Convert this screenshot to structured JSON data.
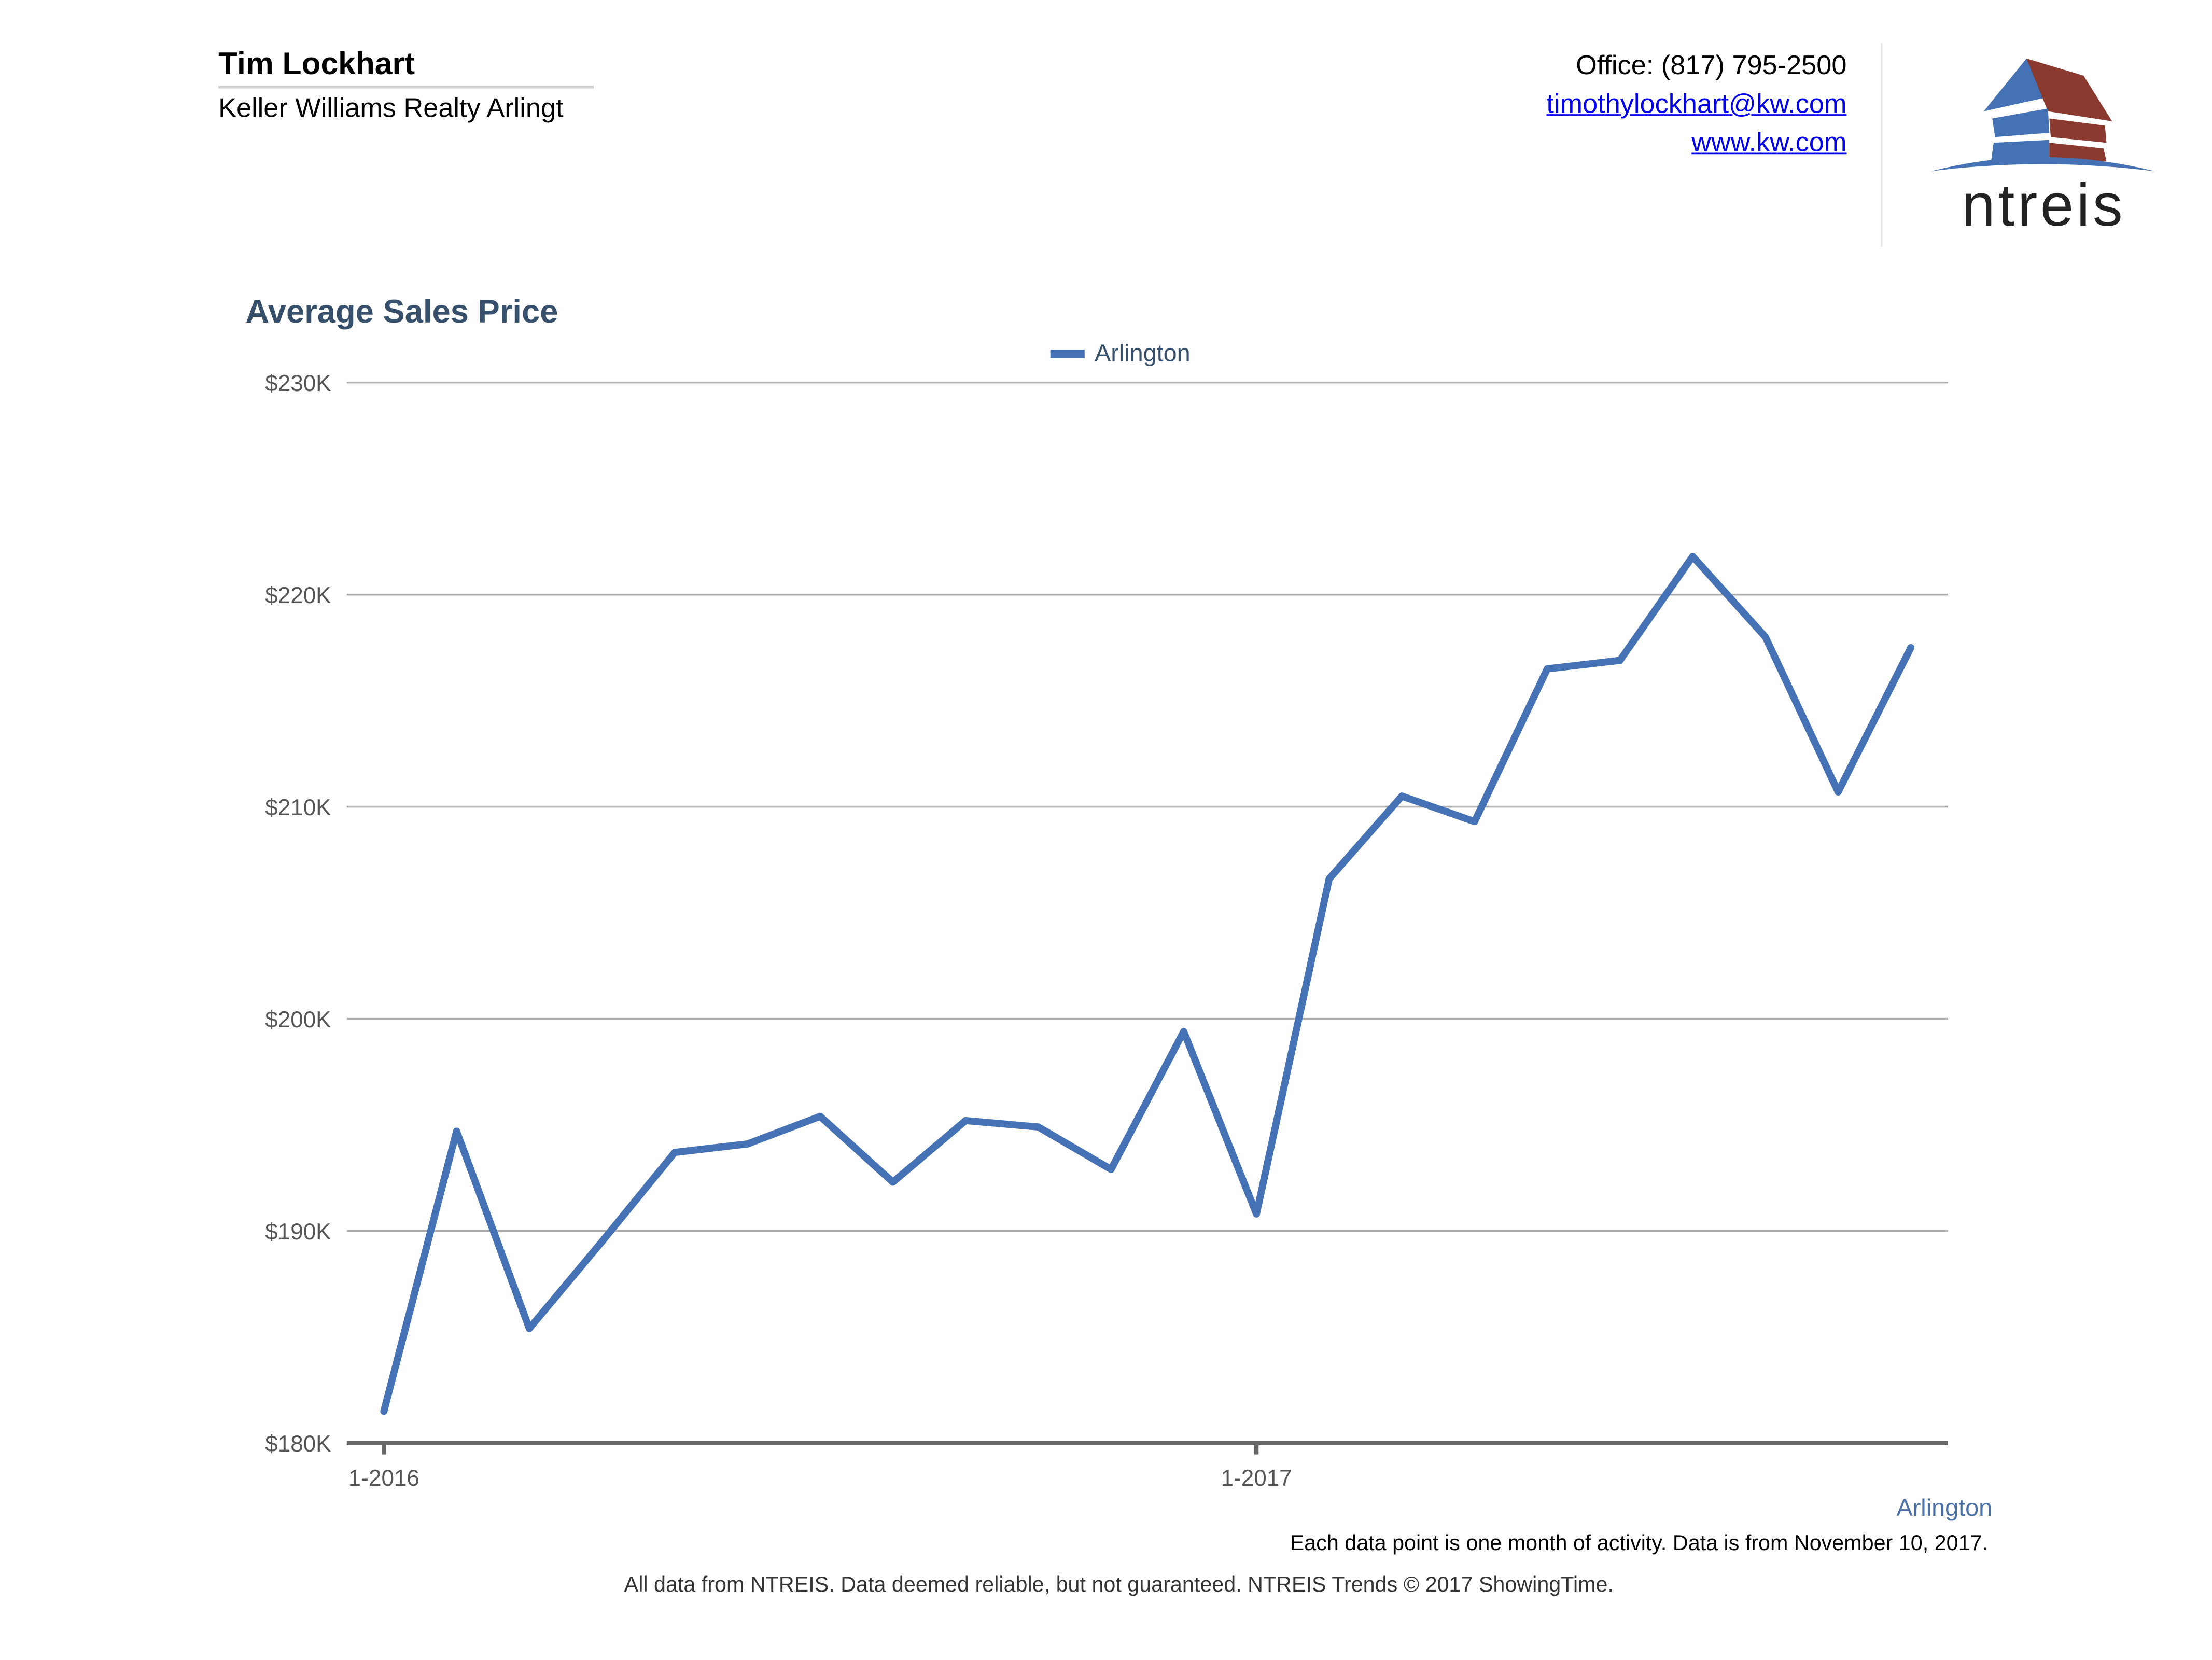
{
  "header": {
    "agent_name": "Tim Lockhart",
    "company": "Keller Williams Realty Arlingt",
    "office": "Office: (817) 795-2500",
    "email": "timothylockhart@kw.com",
    "website": "www.kw.com",
    "logo_text": "ntreis"
  },
  "colors": {
    "series": "#4472b4",
    "title": "#364f6b",
    "logo_blue": "#4472b4",
    "logo_red": "#8b3a2f"
  },
  "chart_data": {
    "type": "line",
    "title": "Average Sales Price",
    "xlabel": "",
    "ylabel": "",
    "ylim": [
      180000,
      230000
    ],
    "yticks": [
      180000,
      190000,
      200000,
      210000,
      220000,
      230000
    ],
    "ytick_labels": [
      "$180K",
      "$190K",
      "$200K",
      "$210K",
      "$220K",
      "$230K"
    ],
    "x": [
      "1-2016",
      "2-2016",
      "3-2016",
      "4-2016",
      "5-2016",
      "6-2016",
      "7-2016",
      "8-2016",
      "9-2016",
      "10-2016",
      "11-2016",
      "12-2016",
      "1-2017",
      "2-2017",
      "3-2017",
      "4-2017",
      "5-2017",
      "6-2017",
      "7-2017",
      "8-2017",
      "9-2017",
      "10-2017"
    ],
    "xtick_labels": [
      {
        "index": 0,
        "label": "1-2016"
      },
      {
        "index": 12,
        "label": "1-2017"
      }
    ],
    "grid": true,
    "legend": "top-center",
    "series": [
      {
        "name": "Arlington",
        "values": [
          181500,
          194700,
          185400,
          189500,
          193700,
          194100,
          195400,
          192300,
          195200,
          194900,
          192900,
          199400,
          190800,
          206600,
          210500,
          209300,
          216500,
          216900,
          221800,
          218000,
          210700,
          217500
        ]
      }
    ],
    "series_label": "Arlington",
    "note": "Each data point is one month of activity. Data is from November 10, 2017."
  },
  "footer": "All data from NTREIS. Data deemed reliable, but not guaranteed. NTREIS Trends © 2017 ShowingTime."
}
